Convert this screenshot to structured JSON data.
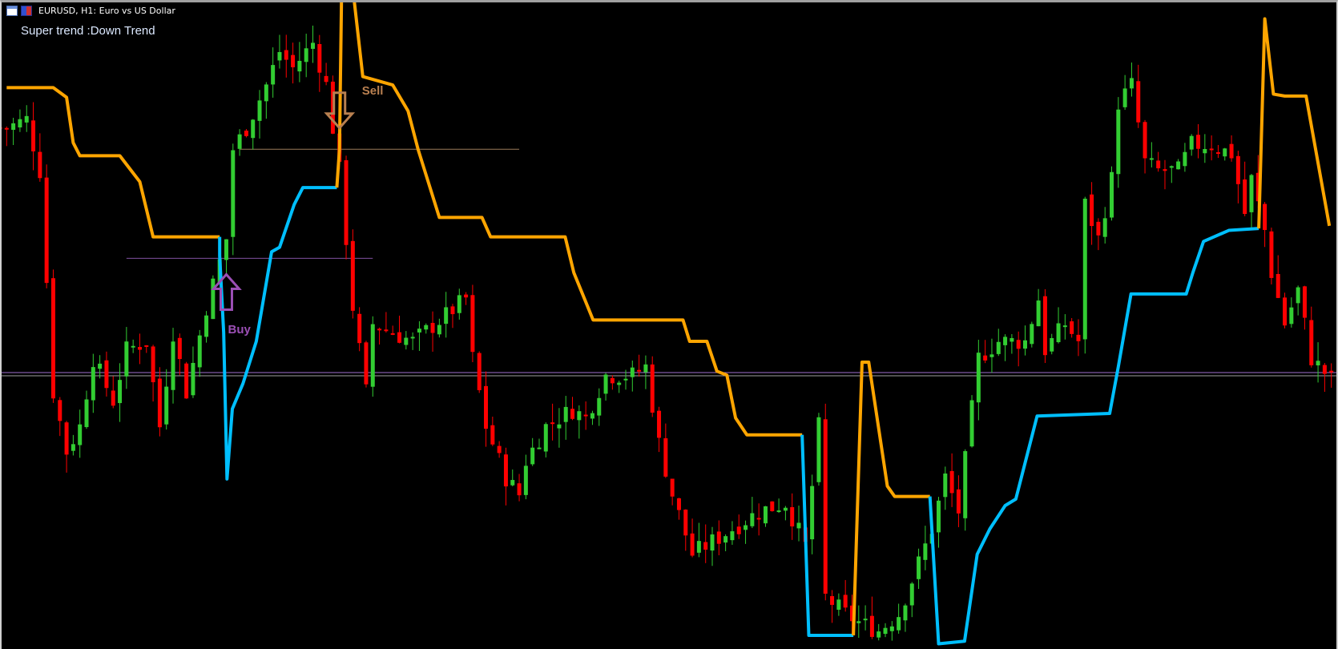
{
  "window": {
    "title": "EURUSD, H1:  Euro vs US Dollar"
  },
  "indicator": {
    "status_text": "Super trend :Down Trend"
  },
  "signals": {
    "buy": {
      "label": "Buy",
      "bar": 34,
      "level": 55,
      "color": "#9b4fb5"
    },
    "sell": {
      "label": "Sell",
      "bar": 51,
      "level": 83,
      "color": "#b98050"
    }
  },
  "colors": {
    "background": "#000000",
    "bull": "#32cd32",
    "bear": "#ff0000",
    "downtrend": "#ffa500",
    "uptrend": "#00bfff",
    "hline_gray": "#a0a0a0",
    "hline_violet": "#a070d0",
    "sell_line": "#9a7a5a",
    "buy_line": "#8050a0"
  },
  "chart_data": {
    "type": "candlestick",
    "symbol": "EURUSD",
    "timeframe": "H1",
    "ylim": [
      0,
      100
    ],
    "xlim": [
      0,
      201
    ],
    "grid": false,
    "close_path": [
      [
        1,
        80.3
      ],
      [
        4,
        81.6
      ],
      [
        6,
        73.7
      ],
      [
        8,
        39.6
      ],
      [
        10,
        30.4
      ],
      [
        12,
        34.3
      ],
      [
        14,
        44.8
      ],
      [
        17,
        38.2
      ],
      [
        19,
        46.1
      ],
      [
        22,
        47.4
      ],
      [
        24,
        34.3
      ],
      [
        26,
        48.8
      ],
      [
        28,
        39.6
      ],
      [
        31,
        52.7
      ],
      [
        34,
        63.2
      ],
      [
        35,
        77
      ],
      [
        37,
        80.3
      ],
      [
        40,
        86.9
      ],
      [
        42,
        92.1
      ],
      [
        44,
        89.5
      ],
      [
        47,
        93.4
      ],
      [
        49,
        86.9
      ],
      [
        51,
        73.7
      ],
      [
        53,
        52.7
      ],
      [
        55,
        39.6
      ],
      [
        56,
        50.1
      ],
      [
        62,
        47.4
      ],
      [
        67,
        51.4
      ],
      [
        70,
        54
      ],
      [
        71,
        44.8
      ],
      [
        73,
        34.3
      ],
      [
        76,
        26.4
      ],
      [
        78,
        23.8
      ],
      [
        79,
        29
      ],
      [
        82,
        34.3
      ],
      [
        86,
        36.9
      ],
      [
        88,
        35.6
      ],
      [
        91,
        42.2
      ],
      [
        95,
        42.2
      ],
      [
        97,
        43.5
      ],
      [
        99,
        31.7
      ],
      [
        101,
        23.8
      ],
      [
        104,
        14.6
      ],
      [
        106,
        15.9
      ],
      [
        110,
        18.5
      ],
      [
        114,
        21.2
      ],
      [
        118,
        22.5
      ],
      [
        121,
        15.9
      ],
      [
        123,
        34.3
      ],
      [
        124,
        8
      ],
      [
        127,
        5.4
      ],
      [
        129,
        4.1
      ],
      [
        132,
        2.8
      ],
      [
        135,
        5.4
      ],
      [
        137,
        10.6
      ],
      [
        140,
        18.5
      ],
      [
        142,
        26.4
      ],
      [
        144,
        21.2
      ],
      [
        146,
        36.9
      ],
      [
        147,
        44.8
      ],
      [
        150,
        47.4
      ],
      [
        154,
        47.4
      ],
      [
        156,
        54
      ],
      [
        157,
        46.1
      ],
      [
        160,
        50.1
      ],
      [
        162,
        47.4
      ],
      [
        163,
        68.5
      ],
      [
        165,
        63.2
      ],
      [
        167,
        72.4
      ],
      [
        168,
        84.2
      ],
      [
        170,
        86.9
      ],
      [
        172,
        75
      ],
      [
        174,
        73.7
      ],
      [
        177,
        73.7
      ],
      [
        179,
        77.7
      ],
      [
        182,
        77.7
      ],
      [
        185,
        76.3
      ],
      [
        187,
        67.1
      ],
      [
        188,
        72.4
      ],
      [
        190,
        64.5
      ],
      [
        191,
        58
      ],
      [
        193,
        50.1
      ],
      [
        195,
        55.3
      ],
      [
        197,
        44.8
      ],
      [
        200,
        41.5
      ]
    ],
    "supertrend": [
      {
        "trend": "down",
        "points": [
          [
            1,
            86.5
          ],
          [
            8,
            86.5
          ],
          [
            10,
            85
          ],
          [
            11,
            78
          ],
          [
            12,
            76
          ],
          [
            18,
            76
          ],
          [
            19.5,
            74
          ],
          [
            21,
            72
          ],
          [
            23,
            63.5
          ],
          [
            33,
            63.5
          ]
        ]
      },
      {
        "trend": "up",
        "points": [
          [
            33,
            63.5
          ],
          [
            33,
            60.6
          ],
          [
            33.6,
            48.8
          ],
          [
            34.1,
            26.2
          ],
          [
            34.9,
            37
          ],
          [
            36.5,
            40.9
          ],
          [
            38.5,
            47.4
          ],
          [
            40.8,
            61.2
          ],
          [
            42,
            61.9
          ],
          [
            44.2,
            68.5
          ],
          [
            45.5,
            71.1
          ],
          [
            50.6,
            71.1
          ]
        ]
      },
      {
        "trend": "down",
        "points": [
          [
            50.6,
            71.1
          ],
          [
            51,
            77
          ],
          [
            51.3,
            100
          ]
        ]
      },
      {
        "trend": "down",
        "points": [
          [
            53.2,
            100
          ],
          [
            54.5,
            88.2
          ],
          [
            59,
            86.9
          ],
          [
            61.3,
            82.9
          ],
          [
            62.8,
            77
          ],
          [
            66,
            66.5
          ],
          [
            72.4,
            66.5
          ],
          [
            73.7,
            63.5
          ],
          [
            84.9,
            63.5
          ],
          [
            86.2,
            58
          ],
          [
            89.1,
            50.7
          ],
          [
            102.6,
            50.7
          ],
          [
            103.6,
            47.4
          ],
          [
            106.2,
            47.4
          ],
          [
            107.7,
            42.8
          ],
          [
            109.2,
            42.2
          ],
          [
            110.5,
            35.6
          ],
          [
            112.2,
            33
          ],
          [
            120.5,
            33
          ]
        ]
      },
      {
        "trend": "up",
        "points": [
          [
            120.5,
            33
          ],
          [
            121.5,
            2.1
          ],
          [
            128.2,
            2.1
          ]
        ]
      },
      {
        "trend": "down",
        "points": [
          [
            128.2,
            2.1
          ],
          [
            129.5,
            44.2
          ],
          [
            130.5,
            44.2
          ],
          [
            133.3,
            25.1
          ],
          [
            134.4,
            23.5
          ],
          [
            139.7,
            23.5
          ]
        ]
      },
      {
        "trend": "up",
        "points": [
          [
            139.7,
            23.5
          ],
          [
            141,
            0.8
          ],
          [
            144.9,
            1.2
          ],
          [
            146.8,
            14.6
          ],
          [
            148.7,
            18.5
          ],
          [
            151,
            22.1
          ],
          [
            152.6,
            23.1
          ],
          [
            155.8,
            35.9
          ],
          [
            166.7,
            36.3
          ],
          [
            168,
            43.5
          ],
          [
            169.9,
            54.7
          ],
          [
            178.2,
            54.7
          ],
          [
            179.2,
            58
          ],
          [
            180.8,
            62.8
          ],
          [
            184.6,
            64.5
          ],
          [
            189.1,
            64.8
          ]
        ]
      },
      {
        "trend": "down",
        "points": [
          [
            189.1,
            64.8
          ],
          [
            190,
            97.1
          ],
          [
            191.3,
            85.5
          ],
          [
            193,
            85.2
          ],
          [
            196.2,
            85.2
          ],
          [
            199.7,
            65.2
          ]
        ]
      }
    ],
    "hlines": [
      {
        "level": 42.6,
        "from": 0,
        "to": 201,
        "color": "hline_violet"
      },
      {
        "level": 42.1,
        "from": 0,
        "to": 201,
        "color": "hline_gray"
      },
      {
        "level": 77,
        "from": 36,
        "to": 78,
        "color": "sell_line"
      },
      {
        "level": 60.2,
        "from": 19,
        "to": 56,
        "color": "buy_line"
      }
    ]
  }
}
